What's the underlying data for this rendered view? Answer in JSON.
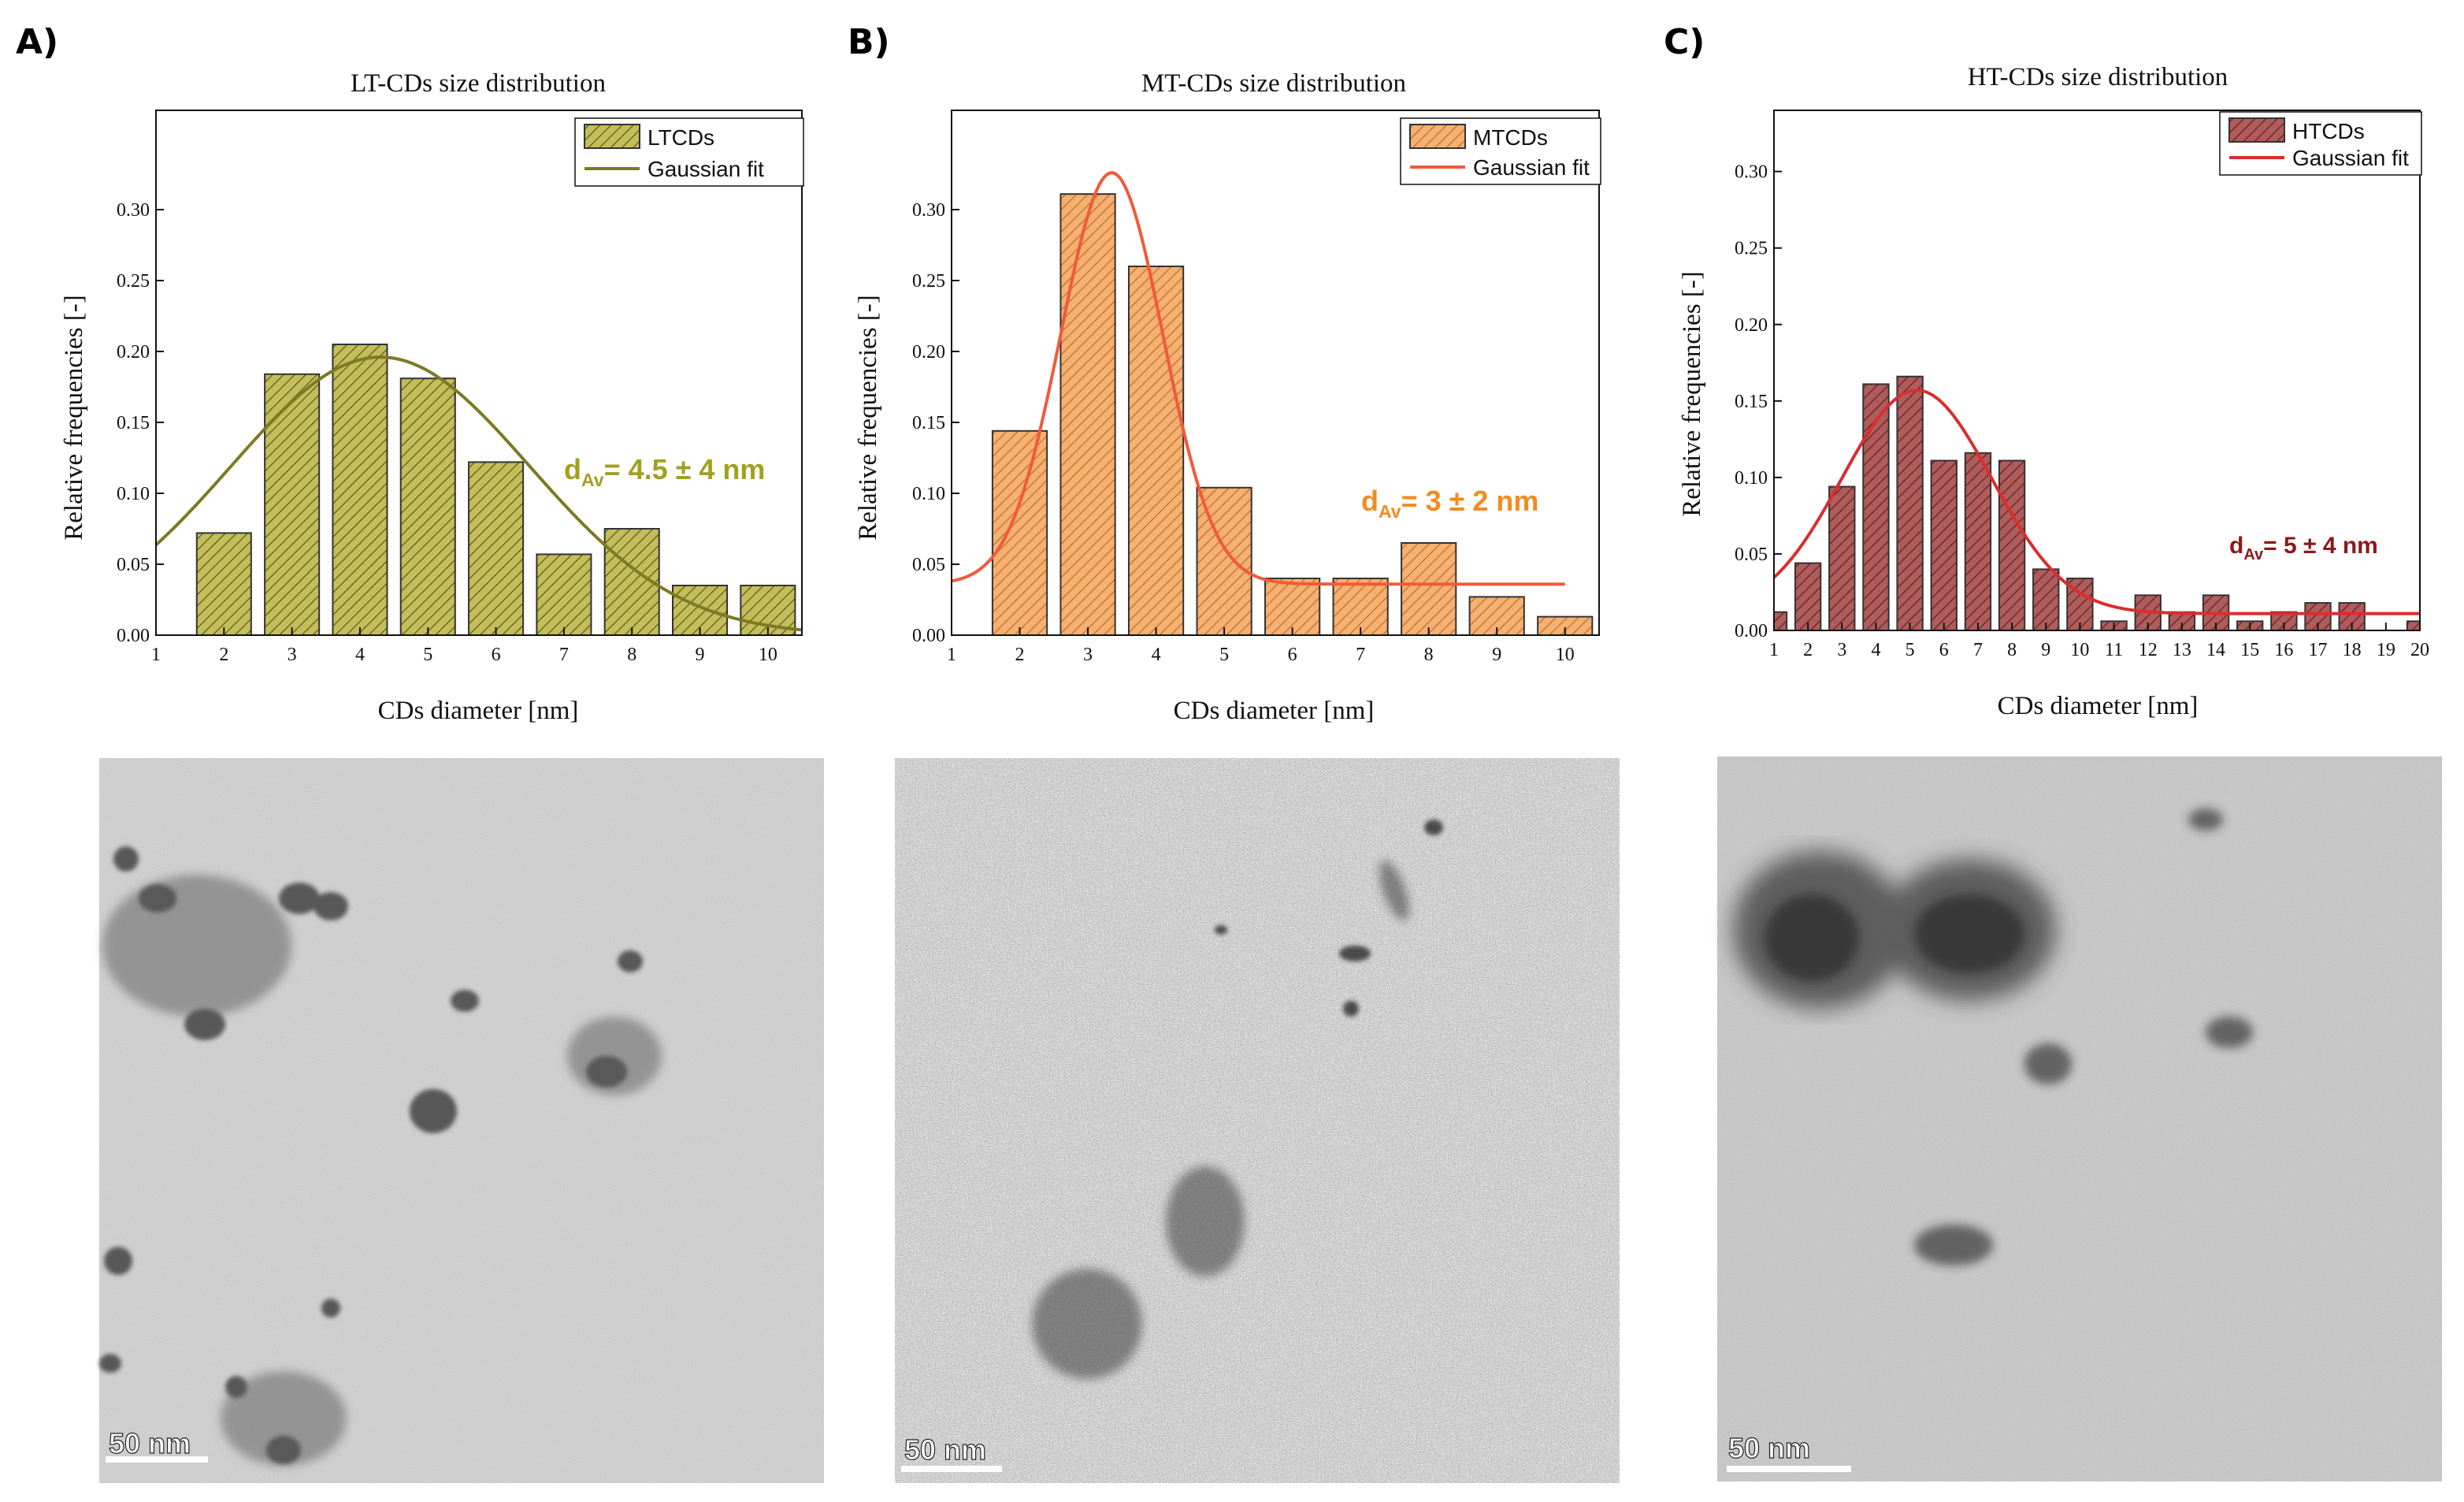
{
  "panels": [
    {
      "letter": "A)"
    },
    {
      "letter": "B)"
    },
    {
      "letter": "C)"
    }
  ],
  "chart_data": [
    {
      "type": "bar",
      "title": "LT-CDs size distribution",
      "xlabel": "CDs diameter [nm]",
      "ylabel": "Relative frequencies [-]",
      "xlim": [
        1,
        10.5
      ],
      "ylim": [
        0,
        0.37
      ],
      "xticks": [
        1,
        2,
        3,
        4,
        5,
        6,
        7,
        8,
        9,
        10
      ],
      "yticks": [
        0.0,
        0.05,
        0.1,
        0.15,
        0.2,
        0.25,
        0.3
      ],
      "ytick_labels": [
        "0.00",
        "0.05",
        "0.10",
        "0.15",
        "0.20",
        "0.25",
        "0.30"
      ],
      "x": [
        2,
        3,
        4,
        5,
        6,
        7,
        8,
        9,
        10
      ],
      "values": [
        0.072,
        0.184,
        0.205,
        0.181,
        0.122,
        0.057,
        0.075,
        0.035,
        0.035
      ],
      "bar_color": "#c3be5a",
      "fit": {
        "type": "gaussian",
        "mean": 4.3,
        "sigma": 2.2,
        "amplitude": 0.196,
        "baseline": 0,
        "x_range": [
          1,
          10.5
        ],
        "color": "#7d7a24"
      },
      "legend": {
        "position": "top-right",
        "bar_label": "LTCDs",
        "fit_label": "Gaussian fit"
      },
      "annotation": {
        "main": "d",
        "sub": "Av",
        "rest": "= 4.5 ± 4 nm",
        "color": "#a3a01f"
      }
    },
    {
      "type": "bar",
      "title": "MT-CDs size distribution",
      "xlabel": "CDs diameter [nm]",
      "ylabel": "Relative frequencies [-]",
      "xlim": [
        1,
        10.5
      ],
      "ylim": [
        0,
        0.37
      ],
      "xticks": [
        1,
        2,
        3,
        4,
        5,
        6,
        7,
        8,
        9,
        10
      ],
      "yticks": [
        0.0,
        0.05,
        0.1,
        0.15,
        0.2,
        0.25,
        0.3
      ],
      "ytick_labels": [
        "0.00",
        "0.05",
        "0.10",
        "0.15",
        "0.20",
        "0.25",
        "0.30"
      ],
      "x": [
        2,
        3,
        4,
        5,
        6,
        7,
        8,
        9,
        10
      ],
      "values": [
        0.144,
        0.311,
        0.26,
        0.104,
        0.04,
        0.04,
        0.065,
        0.027,
        0.013
      ],
      "bar_color": "#f5b072",
      "fit": {
        "type": "gaussian",
        "mean": 3.35,
        "sigma": 0.75,
        "amplitude": 0.29,
        "baseline": 0.036,
        "x_range": [
          1,
          10
        ],
        "color": "#f15a3b"
      },
      "legend": {
        "position": "top-right",
        "bar_label": "MTCDs",
        "fit_label": "Gaussian fit"
      },
      "annotation": {
        "main": "d",
        "sub": "Av",
        "rest": "= 3 ± 2 nm",
        "color": "#f28c1e"
      }
    },
    {
      "type": "bar",
      "title": "HT-CDs size distribution",
      "xlabel": "CDs diameter [nm]",
      "ylabel": "Relative frequencies [-]",
      "xlim": [
        1,
        20
      ],
      "ylim": [
        0,
        0.34
      ],
      "xticks": [
        1,
        2,
        3,
        4,
        5,
        6,
        7,
        8,
        9,
        10,
        11,
        12,
        13,
        14,
        15,
        16,
        17,
        18,
        19,
        20
      ],
      "yticks": [
        0.0,
        0.05,
        0.1,
        0.15,
        0.2,
        0.25,
        0.3
      ],
      "ytick_labels": [
        "0.00",
        "0.05",
        "0.10",
        "0.15",
        "0.20",
        "0.25",
        "0.30"
      ],
      "x": [
        1,
        2,
        3,
        4,
        5,
        6,
        7,
        8,
        9,
        10,
        11,
        12,
        13,
        14,
        15,
        16,
        17,
        18,
        19,
        20
      ],
      "values": [
        0.012,
        0.044,
        0.094,
        0.161,
        0.166,
        0.111,
        0.116,
        0.111,
        0.04,
        0.034,
        0.006,
        0.023,
        0.012,
        0.023,
        0.006,
        0.012,
        0.018,
        0.018,
        0.0,
        0.006
      ],
      "bar_color": "#b05c5c",
      "fit": {
        "type": "gaussian",
        "mean": 5.2,
        "sigma": 2.2,
        "amplitude": 0.146,
        "baseline": 0.011,
        "x_range": [
          1,
          20
        ],
        "color": "#d92e2e"
      },
      "legend": {
        "position": "top-right",
        "bar_label": "HTCDs",
        "fit_label": "Gaussian fit"
      },
      "annotation": {
        "main": "d",
        "sub": "Av",
        "rest": "= 5 ± 4 nm",
        "color": "#8b1a1a"
      }
    }
  ],
  "micrographs": [
    {
      "scale_label": "50 nm"
    },
    {
      "scale_label": "50 nm"
    },
    {
      "scale_label": "50 nm"
    }
  ]
}
